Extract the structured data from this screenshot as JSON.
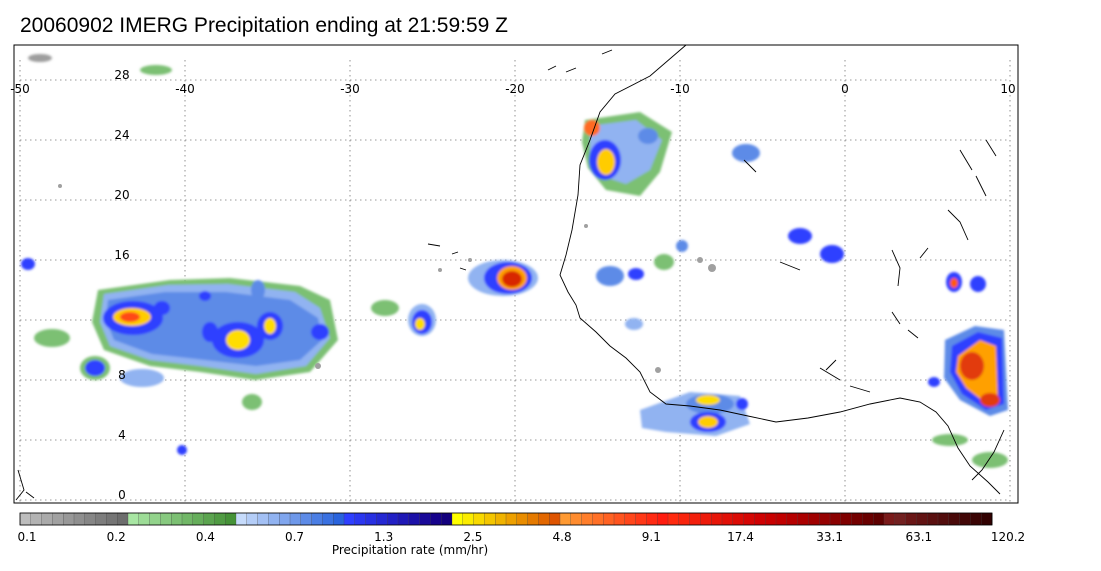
{
  "title": "20060902 IMERG Precipitation ending at 21:59:59 Z",
  "map": {
    "lon_ticks": [
      "-50",
      "-40",
      "-30",
      "-20",
      "-10",
      "0",
      "10"
    ],
    "lat_ticks": [
      "28",
      "24",
      "20",
      "16",
      "8",
      "4",
      "0"
    ]
  },
  "colorbar": {
    "tick_labels": [
      "0.1",
      "0.2",
      "0.4",
      "0.7",
      "1.3",
      "2.5",
      "4.8",
      "9.1",
      "17.4",
      "33.1",
      "63.1",
      "120.2"
    ],
    "label": "Precipitation rate (mm/hr)",
    "colors": [
      "#bdbdbd",
      "#b3b3b3",
      "#aaaaaa",
      "#a1a1a1",
      "#989898",
      "#8f8f8f",
      "#868686",
      "#7d7d7d",
      "#757575",
      "#6d6d6d",
      "#a8e6a3",
      "#9ddc97",
      "#92d38b",
      "#87c97f",
      "#7cc073",
      "#71b767",
      "#66ae5b",
      "#5ba44f",
      "#509b43",
      "#459237",
      "#c6dbfb",
      "#b4cdf7",
      "#a3c0f4",
      "#91b3f1",
      "#80a6ee",
      "#6e98ea",
      "#5d8be7",
      "#4b7ee4",
      "#3a71e1",
      "#2963dd",
      "#2e3fff",
      "#2b37f0",
      "#2830e2",
      "#2528d3",
      "#2220c5",
      "#1f18b6",
      "#1c11a8",
      "#190999",
      "#16028b",
      "#13007d",
      "#ffff00",
      "#fbec00",
      "#f8d900",
      "#f4c600",
      "#f0b300",
      "#eda000",
      "#e98d00",
      "#e57a00",
      "#e26700",
      "#de5400",
      "#ff9a33",
      "#ff8c2f",
      "#ff7e2b",
      "#ff7027",
      "#ff6223",
      "#ff541f",
      "#ff461b",
      "#ff3817",
      "#ff2a13",
      "#ff1c0f",
      "#ff2a0f",
      "#f9240d",
      "#f31f0c",
      "#ed1a0a",
      "#e71508",
      "#e11007",
      "#db0b05",
      "#d50604",
      "#cf0102",
      "#c90000",
      "#c10000",
      "#b60000",
      "#ab0000",
      "#a00000",
      "#950000",
      "#8a0000",
      "#7f0000",
      "#740000",
      "#690000",
      "#5e0000",
      "#7a1a1a",
      "#722020",
      "#6a1616",
      "#621313",
      "#5a1010",
      "#520d0d",
      "#4a0a0a",
      "#420707",
      "#3a0404",
      "#320101"
    ]
  }
}
